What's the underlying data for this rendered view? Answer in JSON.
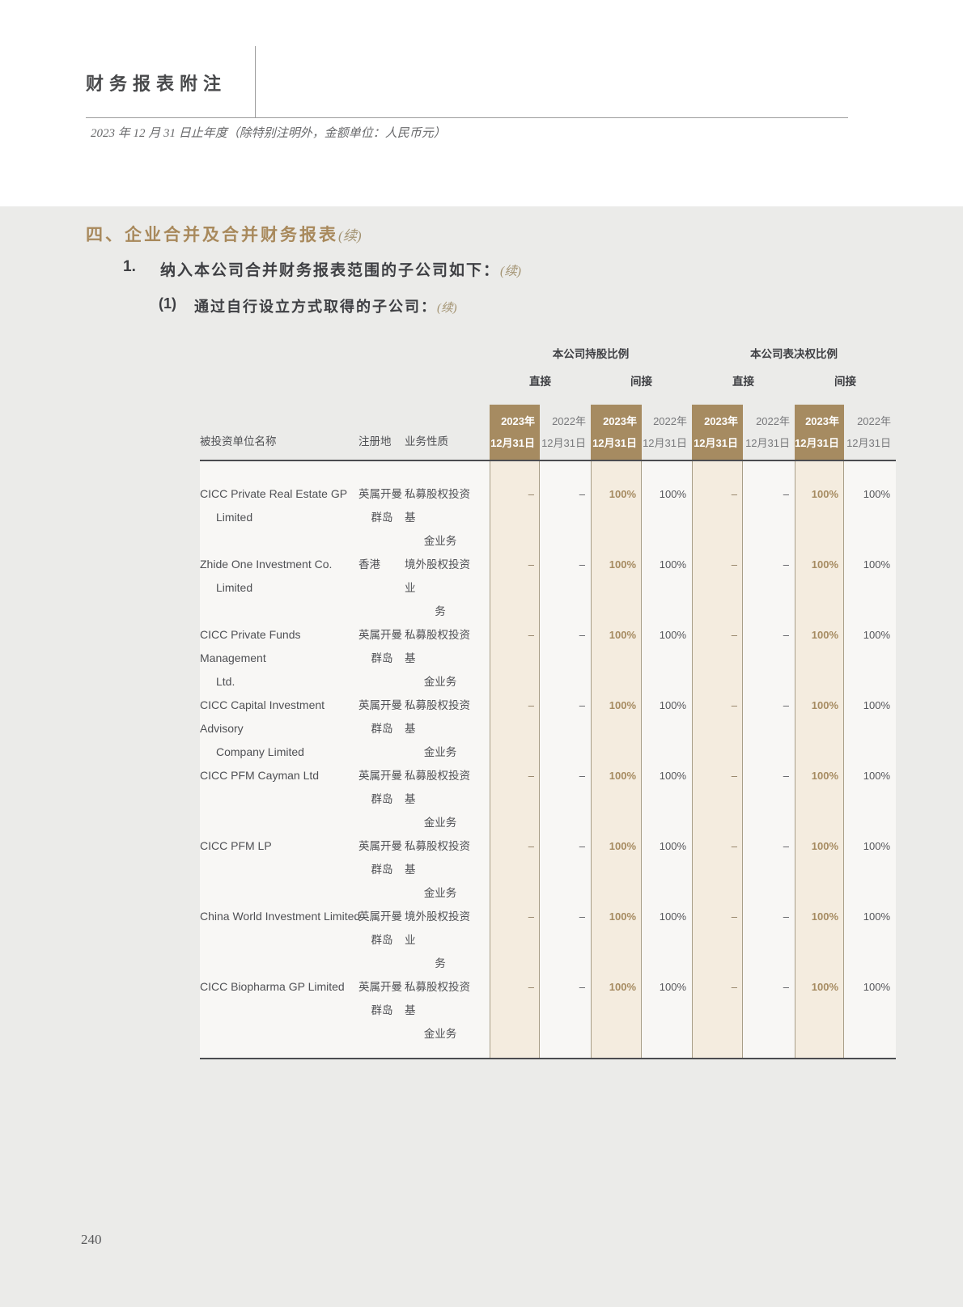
{
  "header": {
    "title": "财务报表附注",
    "subtitle": "2023 年 12 月 31 日止年度（除特别注明外，金额单位：人民币元）"
  },
  "section": {
    "heading": "四、企业合并及合并财务报表",
    "heading_cont": "(续)",
    "item1_no": "1.",
    "item1_text": "纳入本公司合并财务报表范围的子公司如下：",
    "item1_cont": "(续)",
    "item2_no": "(1)",
    "item2_text": "通过自行设立方式取得的子公司：",
    "item2_cont": "(续)"
  },
  "table": {
    "group_headers": [
      "本公司持股比例",
      "本公司表决权比例"
    ],
    "sub_headers": [
      "直接",
      "间接",
      "直接",
      "间接"
    ],
    "col_headers": [
      "被投资单位名称",
      "注册地",
      "业务性质"
    ],
    "year_columns": [
      {
        "line1": "2023年",
        "line2": "12月31日",
        "highlight": true
      },
      {
        "line1": "2022年",
        "line2": "12月31日",
        "highlight": false
      },
      {
        "line1": "2023年",
        "line2": "12月31日",
        "highlight": true
      },
      {
        "line1": "2022年",
        "line2": "12月31日",
        "highlight": false
      },
      {
        "line1": "2023年",
        "line2": "12月31日",
        "highlight": true
      },
      {
        "line1": "2022年",
        "line2": "12月31日",
        "highlight": false
      },
      {
        "line1": "2023年",
        "line2": "12月31日",
        "highlight": true
      },
      {
        "line1": "2022年",
        "line2": "12月31日",
        "highlight": false
      }
    ],
    "rows": [
      {
        "name": [
          "CICC Private Real Estate GP",
          "Limited"
        ],
        "registry": [
          "英属开曼",
          "群岛"
        ],
        "business": [
          "私募股权投资基",
          "金业务"
        ],
        "values": [
          "–",
          "–",
          "100%",
          "100%",
          "–",
          "–",
          "100%",
          "100%"
        ]
      },
      {
        "name": [
          "Zhide One Investment Co.",
          "Limited"
        ],
        "registry": [
          "香港"
        ],
        "business": [
          "境外股权投资业",
          "务"
        ],
        "values": [
          "–",
          "–",
          "100%",
          "100%",
          "–",
          "–",
          "100%",
          "100%"
        ]
      },
      {
        "name": [
          "CICC Private Funds Management",
          "Ltd."
        ],
        "registry": [
          "英属开曼",
          "群岛"
        ],
        "business": [
          "私募股权投资基",
          "金业务"
        ],
        "values": [
          "–",
          "–",
          "100%",
          "100%",
          "–",
          "–",
          "100%",
          "100%"
        ]
      },
      {
        "name": [
          "CICC Capital Investment Advisory",
          "Company Limited"
        ],
        "registry": [
          "英属开曼",
          "群岛"
        ],
        "business": [
          "私募股权投资基",
          "金业务"
        ],
        "values": [
          "–",
          "–",
          "100%",
          "100%",
          "–",
          "–",
          "100%",
          "100%"
        ]
      },
      {
        "name": [
          "CICC PFM Cayman Ltd"
        ],
        "registry": [
          "英属开曼",
          "群岛"
        ],
        "business": [
          "私募股权投资基",
          "金业务"
        ],
        "values": [
          "–",
          "–",
          "100%",
          "100%",
          "–",
          "–",
          "100%",
          "100%"
        ]
      },
      {
        "name": [
          "CICC PFM LP"
        ],
        "registry": [
          "英属开曼",
          "群岛"
        ],
        "business": [
          "私募股权投资基",
          "金业务"
        ],
        "values": [
          "–",
          "–",
          "100%",
          "100%",
          "–",
          "–",
          "100%",
          "100%"
        ]
      },
      {
        "name": [
          "China World Investment Limited"
        ],
        "registry": [
          "英属开曼",
          "群岛"
        ],
        "business": [
          "境外股权投资业",
          "务"
        ],
        "values": [
          "–",
          "–",
          "100%",
          "100%",
          "–",
          "–",
          "100%",
          "100%"
        ]
      },
      {
        "name": [
          "CICC Biopharma GP Limited"
        ],
        "registry": [
          "英属开曼",
          "群岛"
        ],
        "business": [
          "私募股权投资基",
          "金业务"
        ],
        "values": [
          "–",
          "–",
          "100%",
          "100%",
          "–",
          "–",
          "100%",
          "100%"
        ]
      }
    ],
    "colors": {
      "highlight_header": "#a68b61",
      "highlight_fill": "#f4ecdf",
      "column_line": "#a89e88",
      "accent_text": "#a8895c",
      "body_text": "#55565a",
      "page_band": "#ebebe9"
    }
  },
  "footer": {
    "page_number": "240"
  }
}
